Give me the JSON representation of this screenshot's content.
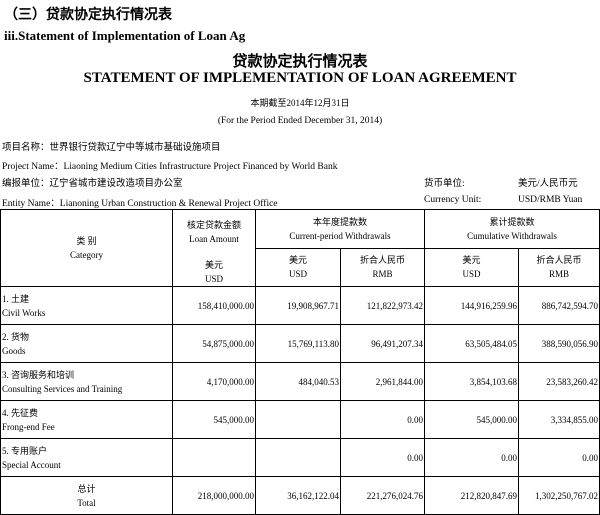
{
  "section_title": "（三）贷款协定执行情况表",
  "section_title_en": "iii.Statement of Implementation of Loan Ag",
  "title_cn": "贷款协定执行情况表",
  "title_en": "STATEMENT OF IMPLEMENTATION OF LOAN AGREEMENT",
  "period_cn": "本期截至2014年12月31日",
  "period_en": "(For the Period Ended December 31, 2014)",
  "project_name_cn": "项目名称：世界银行贷款辽宁中等城市基础设施项目",
  "project_name_en": "Project Name：Liaoning Medium Cities Infrastructure Project Financed by World Bank",
  "entity_cn": "编报单位：辽宁省城市建设改造项目办公室",
  "entity_en": "Entity Name：Lianoning Urban Construction & Renewal Project Office",
  "currency_label_cn": "货币单位:",
  "currency_value_cn": "美元/人民币元",
  "currency_label_en": "Currency Unit:",
  "currency_value_en": "USD/RMB Yuan",
  "headers": {
    "category_cn": "类 别",
    "category_en": "Category",
    "loan_cn": "核定贷款金额",
    "loan_en": "Loan Amount",
    "current_cn": "本年度提款数",
    "current_en": "Current-period Withdrawals",
    "cumulative_cn": "累计提款数",
    "cumulative_en": "Cumulative Withdrawals",
    "usd_cn": "美元",
    "usd_en": "USD",
    "rmb_cn": "折合人民币",
    "rmb_en": "RMB"
  },
  "rows": [
    {
      "cn": "1. 土建",
      "en": "Civil Works",
      "v": [
        "158,410,000.00",
        "19,908,967.71",
        "121,822,973.42",
        "144,916,259.96",
        "886,742,594.70"
      ]
    },
    {
      "cn": "2.  货物",
      "en": "Goods",
      "v": [
        "54,875,000.00",
        "15,769,113.80",
        "96,491,207.34",
        "63,505,484.05",
        "388,590,056.90"
      ]
    },
    {
      "cn": "3.  咨询服务和培训",
      "en": "Consulting Services and Training",
      "v": [
        "4,170,000.00",
        "484,040.53",
        "2,961,844.00",
        "3,854,103.68",
        "23,583,260.42"
      ]
    },
    {
      "cn": "4. 先征费",
      "en": "Frong-end Fee",
      "v": [
        "545,000.00",
        "",
        "0.00",
        "545,000.00",
        "3,334,855.00"
      ]
    },
    {
      "cn": "5. 专用账户",
      "en": "Special Account",
      "v": [
        "",
        "",
        "0.00",
        "0.00",
        "0.00"
      ]
    }
  ],
  "total": {
    "cn": "总计",
    "en": "Total",
    "v": [
      "218,000,000.00",
      "36,162,122.04",
      "221,276,024.76",
      "212,820,847.69",
      "1,302,250,767.02"
    ]
  }
}
